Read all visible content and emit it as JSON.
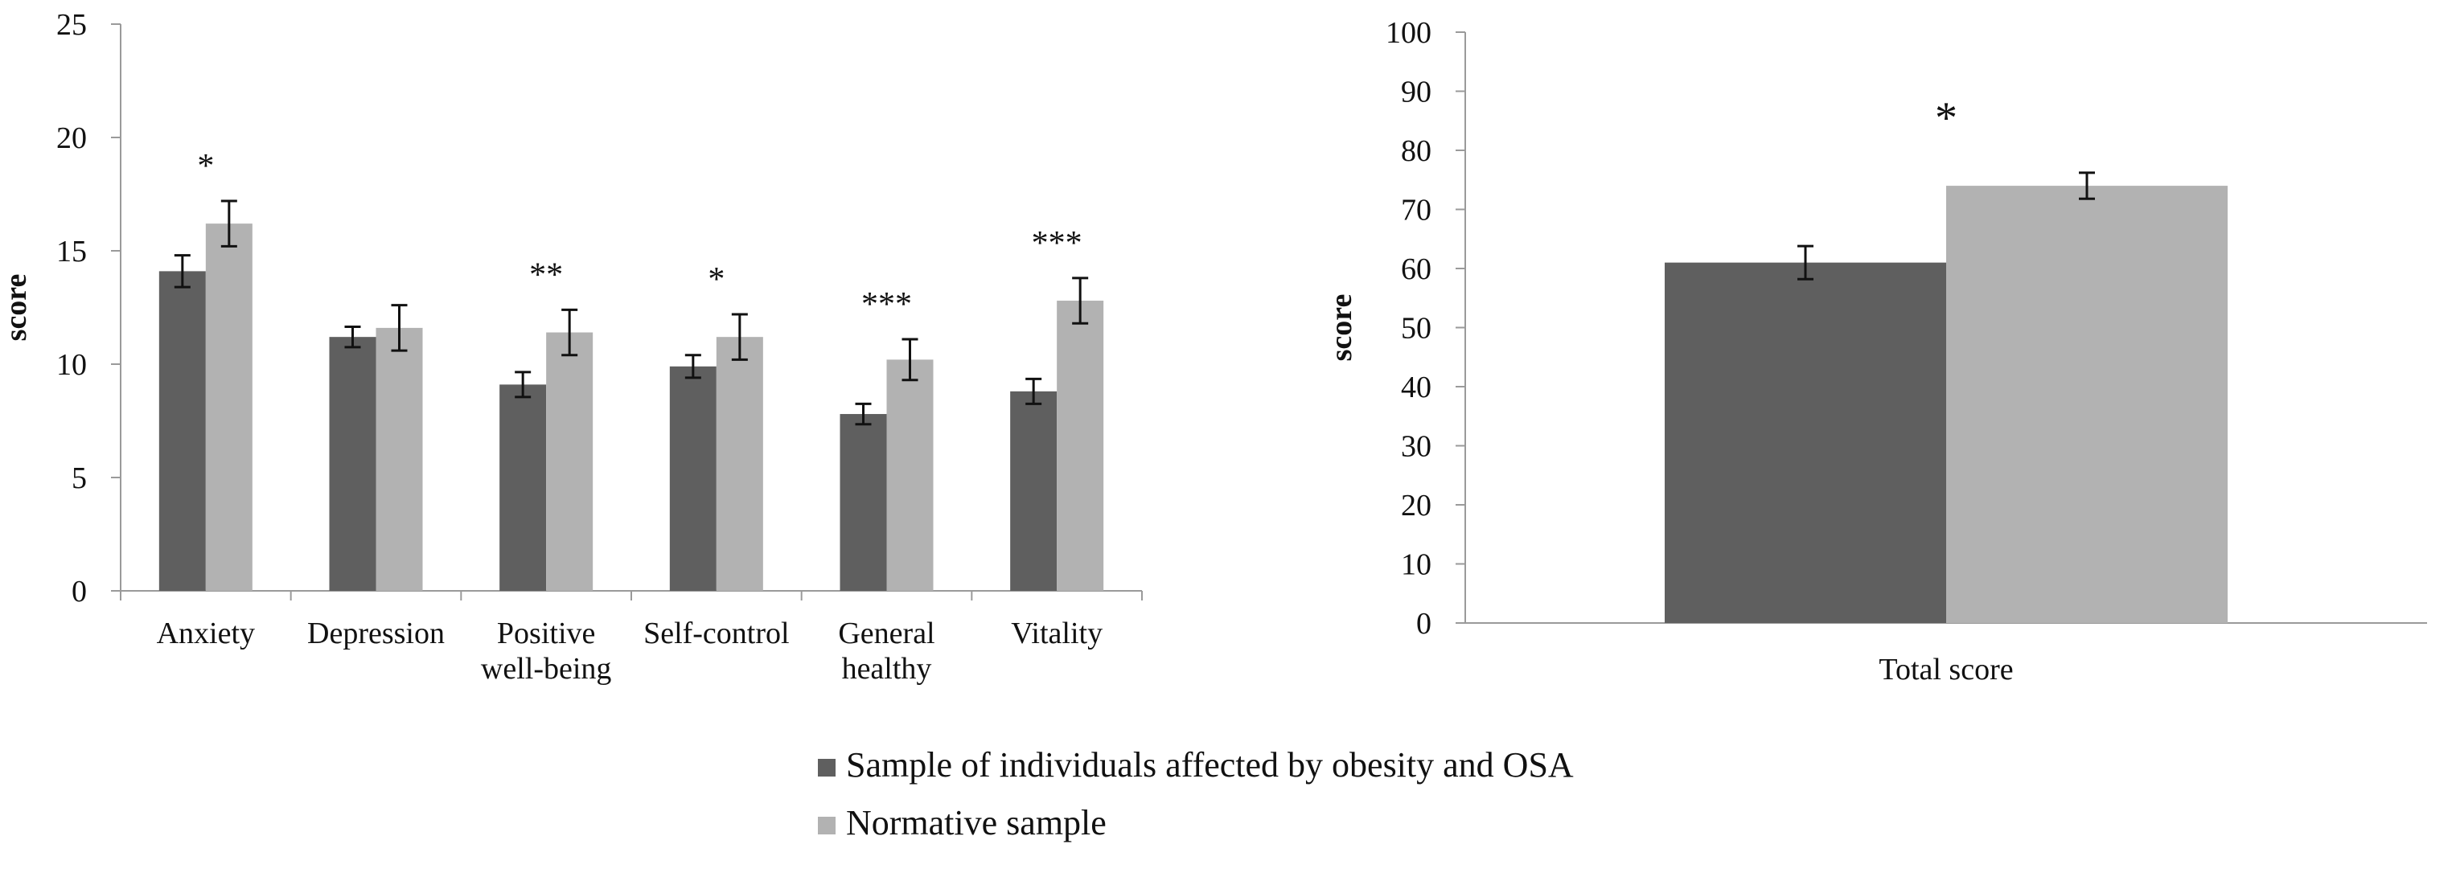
{
  "chart_data": [
    {
      "type": "bar",
      "title": "",
      "xlabel": "",
      "ylabel": "score",
      "ylim": [
        0,
        25
      ],
      "yticks": [
        0,
        5,
        10,
        15,
        20,
        25
      ],
      "grid": false,
      "categories": [
        "Anxiety",
        "Depression",
        "Positive well-being",
        "Self-control",
        "General healthy",
        "Vitality"
      ],
      "category_lines": [
        [
          "Anxiety"
        ],
        [
          "Depression"
        ],
        [
          "Positive",
          "well-being"
        ],
        [
          "Self-control"
        ],
        [
          "General",
          "healthy"
        ],
        [
          "Vitality"
        ]
      ],
      "series": [
        {
          "name": "Sample of individuals affected by obesity and OSA",
          "color": "#5f5f5f",
          "values": [
            14.1,
            11.2,
            9.1,
            9.9,
            7.8,
            8.8
          ],
          "errors": [
            0.7,
            0.45,
            0.55,
            0.5,
            0.45,
            0.55
          ]
        },
        {
          "name": "Normative sample",
          "color": "#b2b2b2",
          "values": [
            16.2,
            11.6,
            11.4,
            11.2,
            10.2,
            12.8
          ],
          "errors": [
            1.0,
            1.0,
            1.0,
            1.0,
            0.9,
            1.0
          ]
        }
      ],
      "annotations": [
        "*",
        "",
        "**",
        "*",
        "***",
        "***"
      ]
    },
    {
      "type": "bar",
      "title": "",
      "xlabel": "",
      "ylabel": "score",
      "ylim": [
        0,
        100
      ],
      "yticks": [
        0,
        10,
        20,
        30,
        40,
        50,
        60,
        70,
        80,
        90,
        100
      ],
      "grid": false,
      "categories": [
        "Total score"
      ],
      "series": [
        {
          "name": "Sample of individuals affected by obesity and OSA",
          "color": "#5f5f5f",
          "values": [
            61
          ],
          "errors": [
            2.8
          ]
        },
        {
          "name": "Normative sample",
          "color": "#b2b2b2",
          "values": [
            74
          ],
          "errors": [
            2.2
          ]
        }
      ],
      "annotations": [
        "*"
      ]
    }
  ],
  "legend": {
    "position": "bottom-center",
    "items": [
      {
        "label": "Sample of individuals affected by obesity and OSA",
        "color": "#5f5f5f"
      },
      {
        "label": "Normative sample",
        "color": "#b2b2b2"
      }
    ]
  }
}
